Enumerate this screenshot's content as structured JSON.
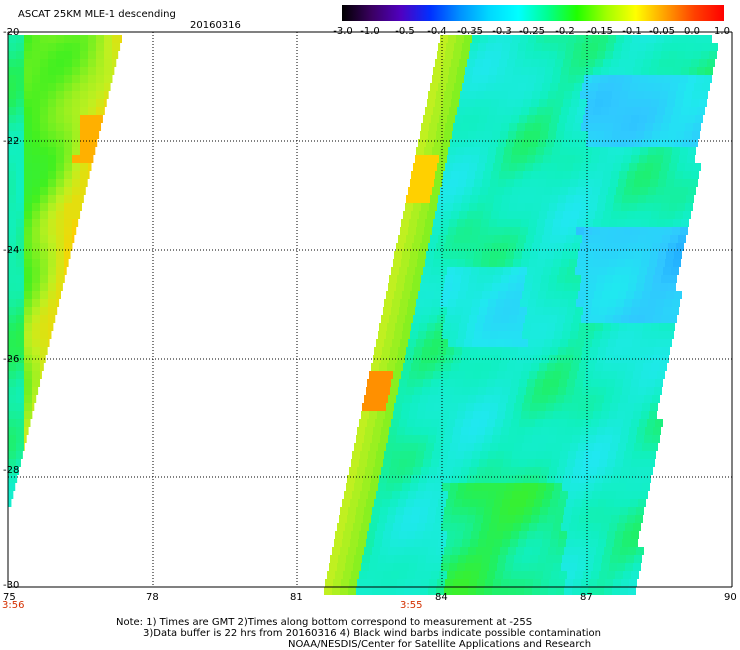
{
  "header": {
    "title": "ASCAT 25KM MLE-1 descending",
    "date": "20160316"
  },
  "colorbar": {
    "labels": [
      "-3.0",
      "-1.0",
      "-0.5",
      "-0.4",
      "-0.35",
      "-0.3",
      "-0.25",
      "-0.2",
      "-0.15",
      "-0.1",
      "-0.05",
      "0.0",
      "1.0"
    ],
    "colors": [
      "#000000",
      "#3a0060",
      "#5000c0",
      "#0030ff",
      "#0090ff",
      "#00d8ff",
      "#00ffff",
      "#00ff90",
      "#20ff00",
      "#a0ff00",
      "#ffff00",
      "#ffa000",
      "#ff4000",
      "#ff0000"
    ]
  },
  "axes": {
    "lat_labels": [
      "-20",
      "-22",
      "-24",
      "-26",
      "-28",
      "-30"
    ],
    "lon_labels": [
      "75",
      "78",
      "81",
      "84",
      "87",
      "90"
    ]
  },
  "times": [
    {
      "label": "3:56"
    },
    {
      "label": "3:55"
    }
  ],
  "notes": {
    "line1": "Note: 1) Times are GMT 2)Times along bottom correspond to measurement at -25S",
    "line2": "3)Data buffer is 22 hrs from 20160316 4) Black wind barbs indicate possible contamination",
    "line3": "NOAA/NESDIS/Center for Satellite Applications and Research"
  }
}
